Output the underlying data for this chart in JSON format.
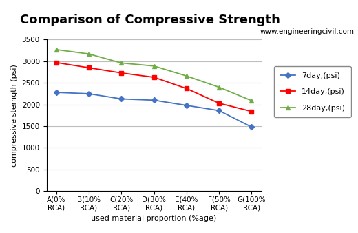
{
  "title": "Comparison of Compressive Strength",
  "watermark": "www.engineeringcivil.com",
  "xlabel": "used material proportion (%age)",
  "ylabel": "compressive sterngth (psi)",
  "categories": [
    "A(0%\nRCA)",
    "B(10%\nRCA)",
    "C(20%\nRCA)",
    "D(30%\nRCA)",
    "E(40%\nRCA)",
    "F(50%\nRCA)",
    "G(100%\nRCA)"
  ],
  "series": [
    {
      "label": "7day,(psi)",
      "values": [
        2280,
        2250,
        2130,
        2100,
        1980,
        1860,
        1480
      ],
      "color": "#4472C4",
      "marker": "D"
    },
    {
      "label": "14day,(psi)",
      "values": [
        2970,
        2850,
        2730,
        2630,
        2370,
        2030,
        1840
      ],
      "color": "#FF0000",
      "marker": "s"
    },
    {
      "label": "28day,(psi)",
      "values": [
        3270,
        3170,
        2960,
        2890,
        2660,
        2400,
        2090
      ],
      "color": "#70AD47",
      "marker": "^"
    }
  ],
  "ylim": [
    0,
    3500
  ],
  "yticks": [
    0,
    500,
    1000,
    1500,
    2000,
    2500,
    3000,
    3500
  ],
  "bg_color": "#FFFFFF",
  "grid_color": "#BEBEBE",
  "title_fontsize": 13,
  "label_fontsize": 8,
  "tick_fontsize": 7.5,
  "legend_fontsize": 8,
  "watermark_fontsize": 7.5
}
